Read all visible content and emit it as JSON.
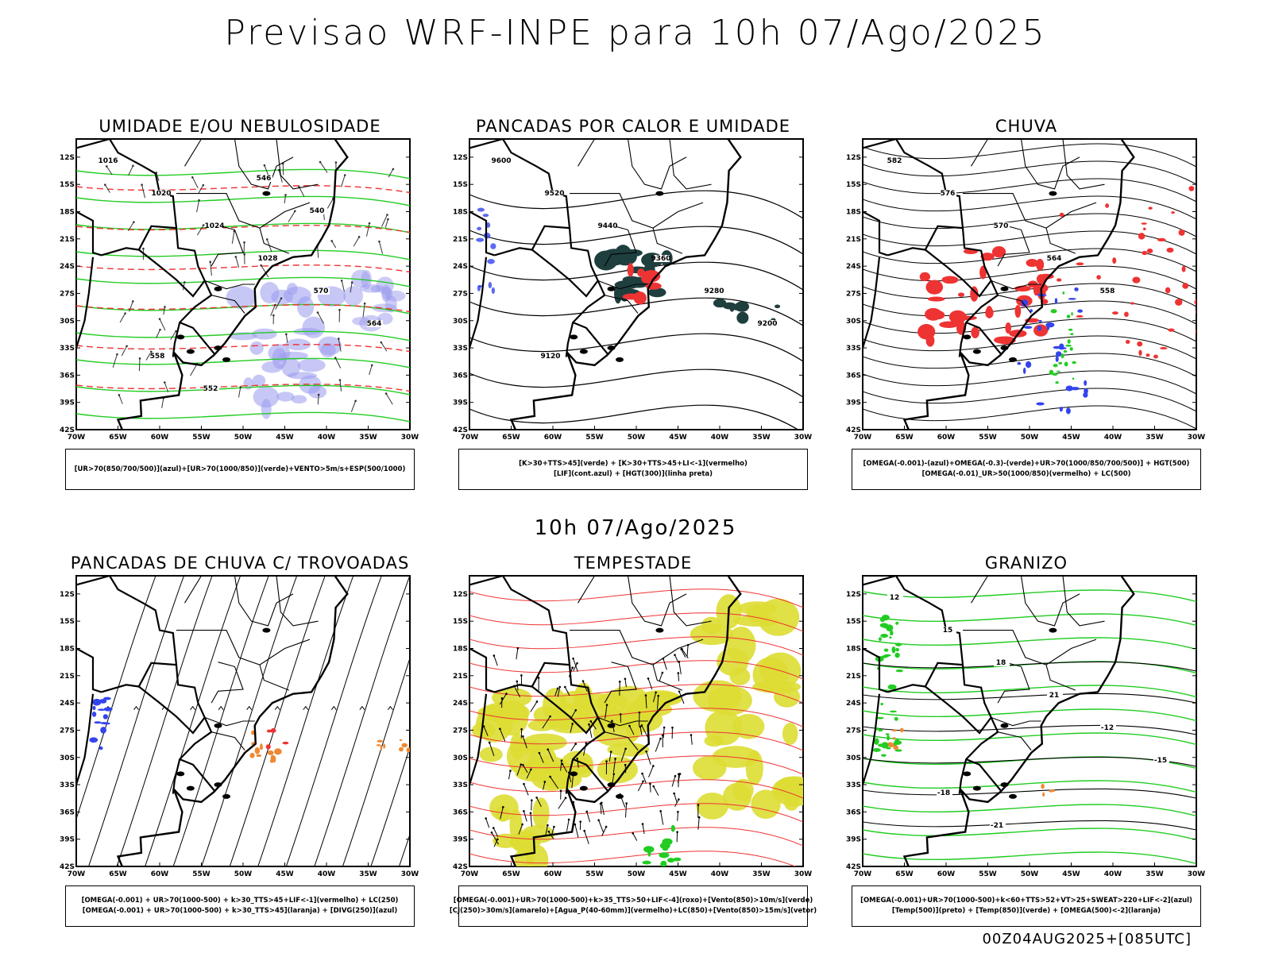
{
  "header": {
    "title": "Previsao WRF-INPE  para 10h 07/Ago/2025"
  },
  "mid_title": "10h 07/Ago/2025",
  "footer": "00Z04AUG2025+[085UTC]",
  "axes": {
    "lat_labels": [
      "12S",
      "15S",
      "18S",
      "21S",
      "24S",
      "27S",
      "30S",
      "33S",
      "36S",
      "39S",
      "42S"
    ],
    "lon_labels": [
      "70W",
      "65W",
      "60W",
      "55W",
      "50W",
      "45W",
      "40W",
      "35W",
      "30W"
    ]
  },
  "colors": {
    "blue": "#3344ee",
    "green": "#22cc22",
    "red": "#ee3333",
    "orange": "#ee8833",
    "yellow": "#dddd33",
    "darkteal": "#1f3f3f",
    "lavender": "#9999ee"
  },
  "panels": [
    {
      "title": "UMIDADE E/OU NEBULOSIDADE",
      "legend": [
        "[UR>70(850/700/500)](azul)+[UR>70(1000/850)](verde)+VENTO>5m/s+ESP(500/1000)"
      ],
      "labels": [
        "1016",
        "1020",
        "1024",
        "1028",
        "570",
        "564",
        "558",
        "552",
        "546",
        "540"
      ]
    },
    {
      "title": "PANCADAS POR CALOR E UMIDADE",
      "legend": [
        "[K>30+TTS>45](verde) + [K>30+TTS>45+LI<-1](vermelho)",
        "[LIF](cont.azul) + [HGT(300)](linha preta)"
      ],
      "labels": [
        "9600",
        "9520",
        "9440",
        "9360",
        "9280",
        "9200",
        "9120"
      ]
    },
    {
      "title": "CHUVA",
      "legend": [
        "[OMEGA(-0.001)-(azul)+OMEGA(-0.3)-(verde)+UR>70(1000/850/700/500)] + HGT(500)",
        "[OMEGA(-0.01)_UR>50(1000/850)(vermelho) + LC(500)"
      ],
      "labels": [
        "582",
        "576",
        "570",
        "564",
        "558"
      ]
    },
    {
      "title": "PANCADAS DE CHUVA C/ TROVOADAS",
      "legend": [
        "[OMEGA(-0.001) + UR>70(1000-500) + k>30_TTS>45+LIF<-1](vermelho) + LC(250)",
        "[OMEGA(-0.001) + UR>70(1000-500) + k>30_TTS>45](laranja) + [DIVG(250)](azul)"
      ],
      "labels": []
    },
    {
      "title": "TEMPESTADE",
      "legend": [
        "[OMEGA(-0.001)+UR>70(1000-500)+k>35_TTS>50+LIF<-4](roxo)+[Vento(850)>10m/s](verde)",
        "[CJ(250)>30m/s](amarelo)+[Agua_P(40-60mm)](vermelho)+LC(850)+[Vento(850)>15m/s](vetor)"
      ],
      "labels": []
    },
    {
      "title": "GRANIZO",
      "legend": [
        "[OMEGA(-0.001)+UR>70(1000-500)+k<60+TTS>52+VT>25+SWEAT>220+LIF<-2](azul)",
        "[Temp(500)](preto) + [Temp(850)](verde) + [OMEGA(500)<-2](laranja)"
      ],
      "labels": [
        "12",
        "15",
        "18",
        "21",
        "-12",
        "-15",
        "-18",
        "-21"
      ]
    }
  ]
}
